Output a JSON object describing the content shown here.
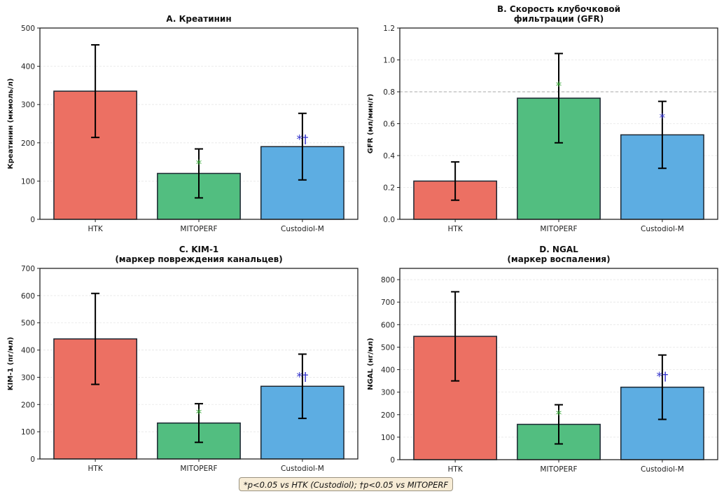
{
  "chart_data": [
    {
      "type": "bar",
      "panel": "A",
      "title": "A. Креатинин",
      "xlabel": "",
      "ylabel": "Креатинин (мкмоль/л)",
      "categories": [
        "HTK",
        "MITOPERF",
        "Custodiol-M"
      ],
      "values": [
        335,
        120,
        190
      ],
      "errors": [
        121,
        64,
        87
      ],
      "colors": [
        "#ec7063",
        "#52be80",
        "#5dade2"
      ],
      "ylim": [
        0,
        500
      ],
      "yticks": [
        0,
        100,
        200,
        300,
        400,
        500
      ],
      "grid": true,
      "significance": [
        {
          "category": "MITOPERF",
          "label": "*",
          "y": 150,
          "color": "#2ca02c"
        },
        {
          "category": "Custodiol-M",
          "label": "*†",
          "y": 215,
          "color": "#3333cc"
        }
      ]
    },
    {
      "type": "bar",
      "panel": "B",
      "title": [
        "B. Скорость клубочковой",
        "фильтрации (GFR)"
      ],
      "xlabel": "",
      "ylabel": "GFR (мл/мин/г)",
      "categories": [
        "HTK",
        "MITOPERF",
        "Custodiol-M"
      ],
      "values": [
        0.24,
        0.76,
        0.53
      ],
      "errors": [
        0.12,
        0.28,
        0.21
      ],
      "colors": [
        "#ec7063",
        "#52be80",
        "#5dade2"
      ],
      "ylim": [
        0,
        1.2
      ],
      "yticks": [
        0.0,
        0.2,
        0.4,
        0.6,
        0.8,
        1.0,
        1.2
      ],
      "ytick_labels": [
        "0.0",
        "0.2",
        "0.4",
        "0.6",
        "0.8",
        "1.0",
        "1.2"
      ],
      "grid": true,
      "reference_line": {
        "y": 0.8,
        "style": "dashed",
        "color": "#aaaaaa"
      },
      "significance": [
        {
          "category": "MITOPERF",
          "label": "*",
          "y": 0.85,
          "color": "#2ca02c"
        },
        {
          "category": "Custodiol-M",
          "label": "*",
          "y": 0.65,
          "color": "#3333cc"
        }
      ]
    },
    {
      "type": "bar",
      "panel": "C",
      "title": [
        "C. KIM-1",
        "(маркер повреждения канальцев)"
      ],
      "xlabel": "",
      "ylabel": "KIM-1 (пг/мл)",
      "categories": [
        "HTK",
        "MITOPERF",
        "Custodiol-M"
      ],
      "values": [
        441,
        132,
        267
      ],
      "errors": [
        167,
        71,
        118
      ],
      "colors": [
        "#ec7063",
        "#52be80",
        "#5dade2"
      ],
      "ylim": [
        0,
        700
      ],
      "yticks": [
        0,
        100,
        200,
        300,
        400,
        500,
        600,
        700
      ],
      "grid": true,
      "significance": [
        {
          "category": "MITOPERF",
          "label": "*",
          "y": 175,
          "color": "#2ca02c"
        },
        {
          "category": "Custodiol-M",
          "label": "*†",
          "y": 310,
          "color": "#3333cc"
        }
      ]
    },
    {
      "type": "bar",
      "panel": "D",
      "title": [
        "D. NGAL",
        "(маркер воспаления)"
      ],
      "xlabel": "",
      "ylabel": "NGAL (нг/мл)",
      "categories": [
        "HTK",
        "MITOPERF",
        "Custodiol-M"
      ],
      "values": [
        548,
        157,
        322
      ],
      "errors": [
        198,
        87,
        143
      ],
      "colors": [
        "#ec7063",
        "#52be80",
        "#5dade2"
      ],
      "ylim": [
        0,
        850
      ],
      "yticks": [
        0,
        100,
        200,
        300,
        400,
        500,
        600,
        700,
        800
      ],
      "grid": true,
      "significance": [
        {
          "category": "MITOPERF",
          "label": "*",
          "y": 210,
          "color": "#2ca02c"
        },
        {
          "category": "Custodiol-M",
          "label": "*†",
          "y": 380,
          "color": "#3333cc"
        }
      ]
    }
  ],
  "footnote": "*p<0.05 vs HTK (Custodiol);  †p<0.05 vs MITOPERF"
}
